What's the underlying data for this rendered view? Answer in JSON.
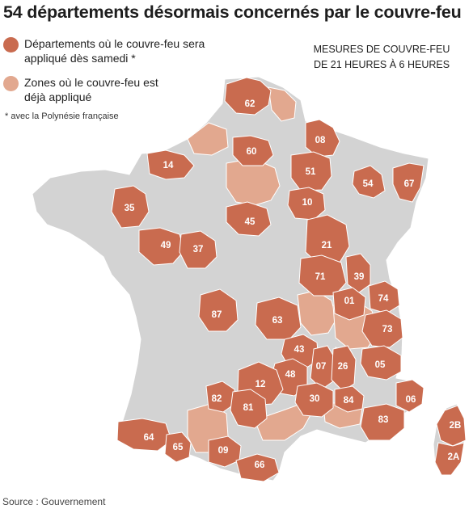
{
  "title": "54 départements désormais concernés par le couvre-feu",
  "legend": [
    {
      "text": "Départements où le couvre-feu sera appliqué dès samedi *",
      "color": "#c96b4f"
    },
    {
      "text": "Zones où le couvre-feu est déjà appliqué",
      "color": "#e2a88f"
    }
  ],
  "legend_note": "* avec la Polynésie française",
  "measures_heading": [
    "MESURES DE COUVRE-FEU",
    "DE 21 HEURES À 6 HEURES"
  ],
  "source": "Source : Gouvernement",
  "colors": {
    "new": "#c96b4f",
    "existing": "#e2a88f",
    "other": "#d3d3d3",
    "border": "#ffffff"
  },
  "departments": [
    "62",
    "08",
    "60",
    "14",
    "51",
    "54",
    "67",
    "10",
    "35",
    "45",
    "21",
    "49",
    "37",
    "71",
    "39",
    "01",
    "74",
    "87",
    "63",
    "73",
    "43",
    "07",
    "48",
    "26",
    "05",
    "12",
    "82",
    "81",
    "30",
    "84",
    "06",
    "83",
    "2B",
    "64",
    "65",
    "09",
    "66",
    "2A"
  ]
}
